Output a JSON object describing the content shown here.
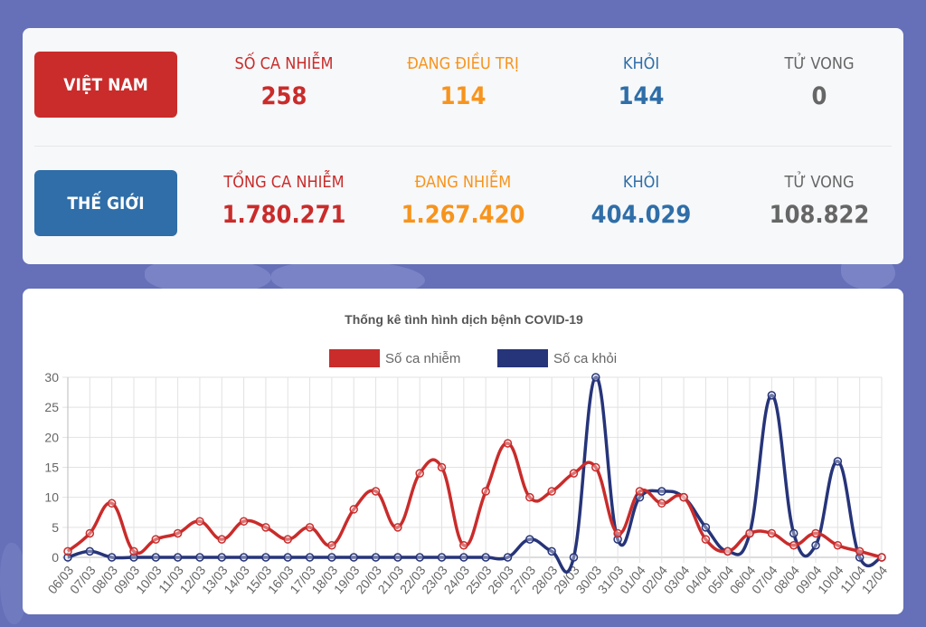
{
  "vietnam": {
    "badge": "VIỆT NAM",
    "stats": [
      {
        "label": "SỐ CA NHIỄM",
        "value": "258",
        "color": "#c92c2b"
      },
      {
        "label": "ĐANG ĐIỀU TRỊ",
        "value": "114",
        "color": "#f7941d"
      },
      {
        "label": "KHỎI",
        "value": "144",
        "color": "#2f6ea8"
      },
      {
        "label": "TỬ VONG",
        "value": "0",
        "color": "#666666"
      }
    ]
  },
  "world": {
    "badge": "THẾ GIỚI",
    "stats": [
      {
        "label": "TỔNG CA NHIỄM",
        "value": "1.780.271",
        "color": "#c92c2b"
      },
      {
        "label": "ĐANG NHIỄM",
        "value": "1.267.420",
        "color": "#f7941d"
      },
      {
        "label": "KHỎI",
        "value": "404.029",
        "color": "#2f6ea8"
      },
      {
        "label": "TỬ VONG",
        "value": "108.822",
        "color": "#666666"
      }
    ]
  },
  "chart_data": {
    "type": "line",
    "title": "Thống kê tình hình dịch bệnh COVID-19",
    "xlabel": "",
    "ylabel": "",
    "ylim": [
      0,
      30
    ],
    "yticks": [
      0,
      5,
      10,
      15,
      20,
      25,
      30
    ],
    "grid": true,
    "legend": "top-center",
    "smooth": true,
    "categories": [
      "06/03",
      "07/03",
      "08/03",
      "09/03",
      "10/03",
      "11/03",
      "12/03",
      "13/03",
      "14/03",
      "15/03",
      "16/03",
      "17/03",
      "18/03",
      "19/03",
      "20/03",
      "21/03",
      "22/03",
      "23/03",
      "24/03",
      "25/03",
      "26/03",
      "27/03",
      "28/03",
      "29/03",
      "30/03",
      "31/03",
      "01/04",
      "02/04",
      "03/04",
      "04/04",
      "05/04",
      "06/04",
      "07/04",
      "08/04",
      "09/04",
      "10/04",
      "11/04",
      "12/04"
    ],
    "series": [
      {
        "name": "Số ca nhiễm",
        "color": "#c92c2b",
        "values": [
          1,
          4,
          9,
          1,
          3,
          4,
          6,
          3,
          6,
          5,
          3,
          5,
          2,
          8,
          11,
          5,
          14,
          15,
          2,
          11,
          19,
          10,
          11,
          14,
          15,
          4,
          11,
          9,
          10,
          3,
          1,
          4,
          4,
          2,
          4,
          2,
          1,
          0
        ]
      },
      {
        "name": "Số ca khỏi",
        "color": "#263479",
        "values": [
          0,
          1,
          0,
          0,
          0,
          0,
          0,
          0,
          0,
          0,
          0,
          0,
          0,
          0,
          0,
          0,
          0,
          0,
          0,
          0,
          0,
          3,
          1,
          0,
          30,
          3,
          10,
          11,
          10,
          5,
          1,
          4,
          27,
          4,
          2,
          16,
          0,
          0
        ]
      }
    ]
  }
}
